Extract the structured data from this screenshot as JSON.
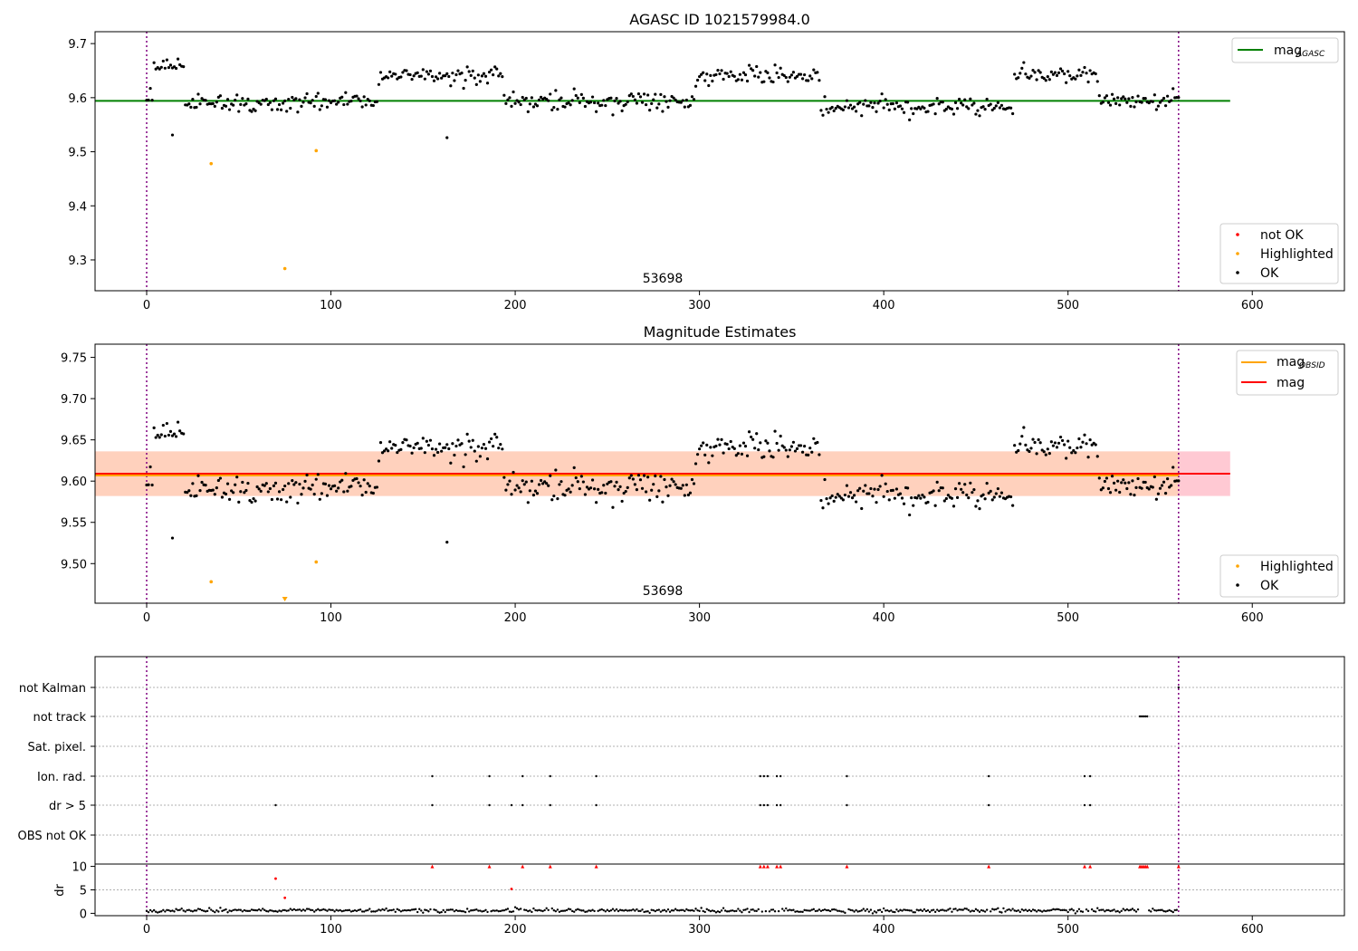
{
  "chart_data": [
    {
      "type": "scatter",
      "title": "AGASC ID 1021579984.0",
      "xlim": [
        -28,
        650
      ],
      "ylim": [
        9.243,
        9.722
      ],
      "xticks": [
        0,
        100,
        200,
        300,
        400,
        500,
        600
      ],
      "yticks": [
        9.3,
        9.4,
        9.5,
        9.6,
        9.7
      ],
      "vlines": [
        0,
        560
      ],
      "colors": {
        "ok": "#000000",
        "highlighted": "#ffa500",
        "not_ok": "#ff0000",
        "mag_agasc": "#008000",
        "vline": "#800080"
      },
      "hlines": [
        {
          "y": 9.594,
          "x0": -28,
          "x1": 588,
          "color": "#008000",
          "name": "mag",
          "sub": "AGASC"
        }
      ],
      "highlighted": [
        [
          35,
          9.478
        ],
        [
          75,
          9.284
        ],
        [
          92,
          9.502
        ]
      ],
      "outliers": [
        [
          14,
          9.531
        ],
        [
          163,
          9.526
        ]
      ],
      "annotation": {
        "text": "53698",
        "x": 280,
        "y": 9.262
      },
      "legend_lines": [
        {
          "name": "mag",
          "sub": "AGASC",
          "color": "#008000"
        }
      ],
      "legend_markers": [
        {
          "name": "not OK",
          "color": "#ff0000"
        },
        {
          "name": "Highlighted",
          "color": "#ffa500"
        },
        {
          "name": "OK",
          "color": "#000000"
        }
      ],
      "segments": [
        [
          0,
          3,
          9.6,
          0.01
        ],
        [
          4,
          20,
          9.655,
          0.01
        ],
        [
          21,
          125,
          9.59,
          0.012
        ],
        [
          126,
          193,
          9.64,
          0.01
        ],
        [
          194,
          297,
          9.593,
          0.012
        ],
        [
          298,
          365,
          9.64,
          0.01
        ],
        [
          366,
          470,
          9.585,
          0.012
        ],
        [
          471,
          516,
          9.643,
          0.012
        ],
        [
          517,
          560,
          9.595,
          0.01
        ]
      ]
    },
    {
      "type": "scatter",
      "title": "Magnitude Estimates",
      "xlim": [
        -28,
        650
      ],
      "ylim": [
        9.452,
        9.766
      ],
      "xticks": [
        0,
        100,
        200,
        300,
        400,
        500,
        600
      ],
      "yticks": [
        9.5,
        9.55,
        9.6,
        9.65,
        9.7,
        9.75
      ],
      "ytick_labels": [
        "9.50",
        "9.55",
        "9.60",
        "9.65",
        "9.70",
        "9.75"
      ],
      "vlines": [
        0,
        560
      ],
      "colors": {
        "ok": "#000000",
        "highlighted": "#ffa500",
        "mag": "#ff0000",
        "mag_obsid": "#ffa500",
        "band_outer": "#ffc0cb",
        "band_inner": "#ffd2b8",
        "vline": "#800080"
      },
      "hlines": [
        {
          "y": 9.609,
          "x0": -28,
          "x1": 588,
          "color": "#ff0000",
          "name": "mag"
        },
        {
          "y": 9.607,
          "x0": -28,
          "x1": 560,
          "color": "#ffa500",
          "name": "mag",
          "sub": "OBSID"
        }
      ],
      "bands": [
        {
          "y0": 9.582,
          "y1": 9.636,
          "x0": -28,
          "x1": 588,
          "color": "#ffc0cb"
        },
        {
          "y0": 9.582,
          "y1": 9.636,
          "x0": -28,
          "x1": 560,
          "color": "#ffd2b8"
        }
      ],
      "highlighted": [
        [
          35,
          9.478
        ],
        [
          92,
          9.502
        ]
      ],
      "highlighted_offscale": [
        [
          75,
          9.455
        ]
      ],
      "outliers": [
        [
          14,
          9.531
        ],
        [
          163,
          9.526
        ]
      ],
      "annotation": {
        "text": "53698",
        "x": 280,
        "y": 9.462
      },
      "legend_lines": [
        {
          "name": "mag",
          "sub": "OBSID",
          "color": "#ffa500"
        },
        {
          "name": "mag",
          "color": "#ff0000"
        }
      ],
      "legend_markers": [
        {
          "name": "Highlighted",
          "color": "#ffa500"
        },
        {
          "name": "OK",
          "color": "#000000"
        }
      ],
      "segments": [
        [
          0,
          3,
          9.6,
          0.01
        ],
        [
          4,
          20,
          9.655,
          0.01
        ],
        [
          21,
          125,
          9.59,
          0.012
        ],
        [
          126,
          193,
          9.64,
          0.01
        ],
        [
          194,
          297,
          9.593,
          0.012
        ],
        [
          298,
          365,
          9.64,
          0.01
        ],
        [
          366,
          470,
          9.585,
          0.012
        ],
        [
          471,
          516,
          9.643,
          0.012
        ],
        [
          517,
          560,
          9.595,
          0.01
        ]
      ]
    },
    {
      "type": "scatter",
      "title": "",
      "xlim": [
        -28,
        650
      ],
      "xticks": [
        0,
        100,
        200,
        300,
        400,
        500,
        600
      ],
      "vlines": [
        0,
        560
      ],
      "flag_rows": [
        "not Kalman",
        "not track",
        "Sat. pixel.",
        "Ion. rad.",
        "dr > 5",
        "OBS not OK"
      ],
      "flags": {
        "not Kalman": [
          560
        ],
        "not track": [
          539,
          540,
          541,
          542,
          543
        ],
        "Sat. pixel.": [],
        "Ion. rad.": [
          155,
          186,
          204,
          219,
          244,
          333,
          335,
          337,
          342,
          344,
          380,
          457,
          509,
          512
        ],
        "dr > 5": [
          70,
          155,
          186,
          198,
          204,
          219,
          244,
          333,
          335,
          337,
          342,
          344,
          380,
          457,
          509,
          512
        ],
        "OBS not OK": []
      },
      "dr": {
        "ylim": [
          -0.5,
          10.5
        ],
        "yticks": [
          0,
          5,
          10
        ],
        "ylabel": "dr",
        "capped": [
          155,
          186,
          204,
          219,
          244,
          333,
          335,
          337,
          342,
          344,
          380,
          457,
          509,
          512,
          539,
          540,
          541,
          542,
          543,
          560
        ],
        "red_points": [
          [
            70,
            7.4
          ],
          [
            75,
            3.3
          ],
          [
            198,
            5.2
          ]
        ],
        "baseline_mean": 0.6,
        "baseline_spread": 0.35
      },
      "colors": {
        "ok": "#000000",
        "red": "#ff0000",
        "vline": "#800080"
      }
    }
  ]
}
